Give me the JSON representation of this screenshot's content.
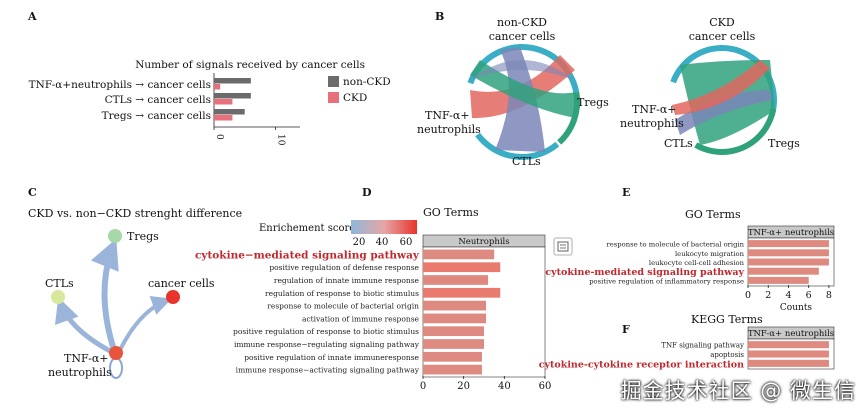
{
  "panels": {
    "A": "A",
    "B": "B",
    "C": "C",
    "D": "D",
    "E": "E",
    "F": "F"
  },
  "panelA": {
    "title": "Number of signals received by cancer cells",
    "chart_data": {
      "type": "bar",
      "orientation": "horizontal",
      "categories": [
        "TNF-α+neutrophils → cancer cells",
        "CTLs → cancer cells",
        "Tregs → cancer cells"
      ],
      "series": [
        {
          "name": "non-CKD",
          "color": "#6b6b6b",
          "values": [
            6,
            6,
            5
          ]
        },
        {
          "name": "CKD",
          "color": "#e8707a",
          "values": [
            1,
            3,
            3
          ]
        }
      ],
      "ticks": [
        "0",
        "10"
      ],
      "xlim": [
        0,
        14
      ]
    }
  },
  "panelB": {
    "left": {
      "title1": "non-CKD",
      "title2": "cancer cells",
      "labels": {
        "tregs": "Tregs",
        "tnf1": "TNF-α+",
        "tnf2": "neutrophils",
        "ctls": "CTLs"
      }
    },
    "right": {
      "title1": "CKD",
      "title2": "cancer cells",
      "labels": {
        "tnf1": "TNF-α+",
        "tnf2": "neutrophils",
        "ctls": "CTLs",
        "tregs": "Tregs"
      }
    },
    "colors": {
      "cancer": "#3aaec5",
      "tregs": "#2fa27c",
      "neut": "#e2675f",
      "ctls": "#7a86b8"
    }
  },
  "panelC": {
    "title": "CKD vs. non−CKD strenght difference",
    "nodes": {
      "tregs": "Tregs",
      "ctls": "CTLs",
      "cancer": "cancer cells",
      "tnf1": "TNF-α+",
      "tnf2": "neutrophils"
    }
  },
  "panelD": {
    "title": "GO Terms",
    "legend_title": "Enrichement score",
    "legend_ticks": [
      "20",
      "40",
      "60"
    ],
    "facet": "Neutrophils",
    "chart_data": {
      "type": "bar",
      "orientation": "horizontal",
      "categories": [
        "cytokine−mediated signaling pathway",
        "positive regulation of defense response",
        "regulation of innate immune response",
        "regulation of response to biotic stimulus",
        "response to molecule of bacterial origin",
        "activation of immune response",
        "positive regulation of response to biotic stimulus",
        "immune response−regulating signaling pathway",
        "positive regulation of innate immuneresponse",
        "immune response−activating signaling pathway"
      ],
      "values": [
        35,
        38,
        32,
        38,
        31,
        31,
        30,
        30,
        29,
        29
      ],
      "highlight_index": 0,
      "ticks": [
        "0",
        "20",
        "40",
        "60"
      ],
      "xlim": [
        0,
        60
      ]
    }
  },
  "panelE": {
    "title": "GO Terms",
    "facet": "TNF-α+ neutrophils",
    "xlabel": "Counts",
    "chart_data": {
      "type": "bar",
      "orientation": "horizontal",
      "categories": [
        "response to molecule of bacterial origin",
        "leukocyte migration",
        "leukocyte cell-cell adhesion",
        "cytokine-mediated signaling pathway",
        "positive regulation of inflammatory response"
      ],
      "values": [
        8,
        8,
        8,
        7,
        6
      ],
      "highlight_index": 3,
      "ticks": [
        "0",
        "2",
        "4",
        "6",
        "8"
      ],
      "xlim": [
        0,
        8.5
      ]
    }
  },
  "panelF": {
    "title": "KEGG Terms",
    "facet": "TNF-α+ neutrophils",
    "chart_data": {
      "type": "bar",
      "orientation": "horizontal",
      "categories": [
        "TNF signaling pathway",
        "apoptosis",
        "cytokine-cytokine receptor interaction"
      ],
      "values": [
        8,
        8,
        8
      ],
      "highlight_index": 2,
      "xlim": [
        0,
        8.5
      ]
    }
  },
  "watermark": "掘金技术社区 @ 微生信"
}
